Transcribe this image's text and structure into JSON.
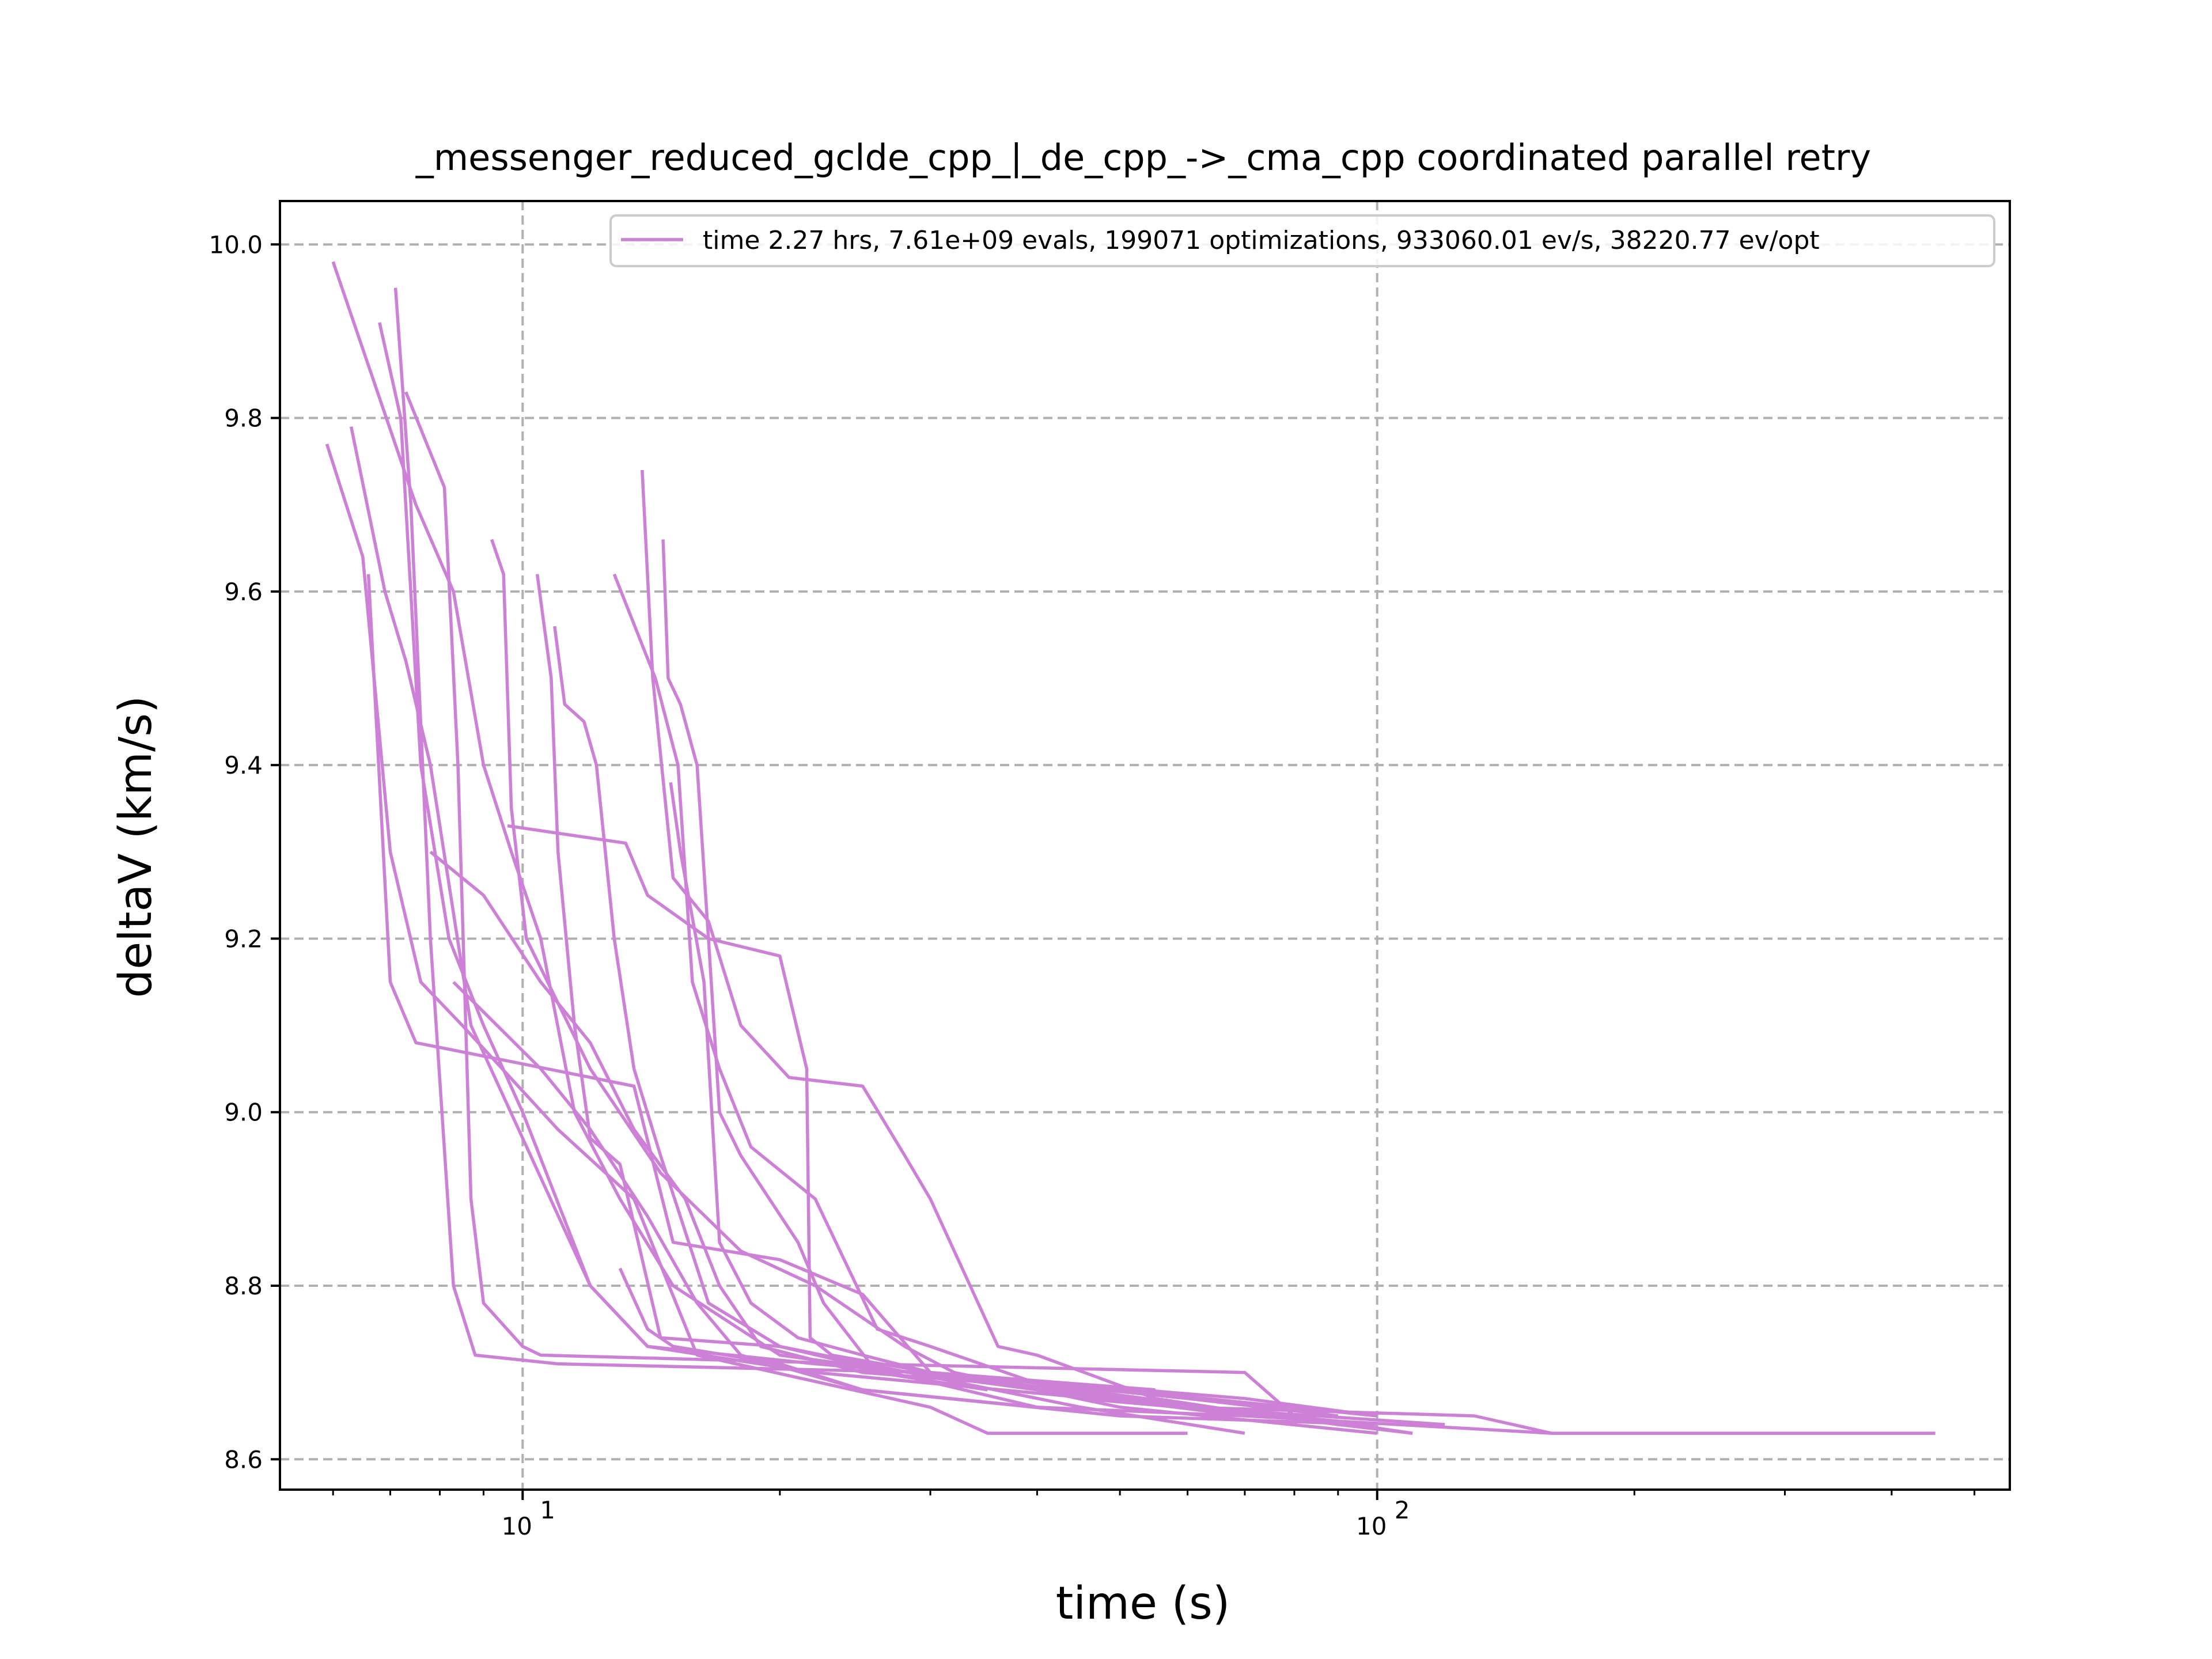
{
  "chart_data": {
    "type": "line",
    "title": "_messenger_reduced_gclde_cpp_|_de_cpp_->_cma_cpp coordinated parallel retry",
    "xlabel": "time (s)",
    "ylabel": "deltaV (km/s)",
    "xscale": "log",
    "xlim": [
      5.2,
      550
    ],
    "ylim": [
      8.565,
      10.05
    ],
    "grid": true,
    "legend_position": "top-right",
    "x_ticks": [
      {
        "value": 10,
        "base": "10",
        "exp": "1"
      },
      {
        "value": 100,
        "base": "10",
        "exp": "2"
      }
    ],
    "y_ticks": [
      {
        "value": 8.6,
        "label": "8.6"
      },
      {
        "value": 8.8,
        "label": "8.8"
      },
      {
        "value": 9.0,
        "label": "9.0"
      },
      {
        "value": 9.2,
        "label": "9.2"
      },
      {
        "value": 9.4,
        "label": "9.4"
      },
      {
        "value": 9.6,
        "label": "9.6"
      },
      {
        "value": 9.8,
        "label": "9.8"
      },
      {
        "value": 10.0,
        "label": "10.0"
      }
    ],
    "color": "#cc80d6",
    "series": [
      {
        "name": "time 2.27 hrs, 7.61e+09 evals, 199071 optimizations, 933060.01 ev/s, 38220.77 ev/opt",
        "points": [
          [
            6.0,
            9.98
          ],
          [
            7.5,
            9.7
          ],
          [
            8.3,
            9.6
          ],
          [
            9.0,
            9.4
          ],
          [
            9.7,
            9.3
          ],
          [
            10.5,
            9.2
          ],
          [
            11.5,
            9.0
          ],
          [
            13.0,
            8.9
          ],
          [
            15.0,
            8.8
          ],
          [
            20.0,
            8.72
          ],
          [
            40.0,
            8.68
          ],
          [
            70.0,
            8.65
          ],
          [
            160.0,
            8.63
          ],
          [
            450.0,
            8.63
          ]
        ]
      },
      {
        "name": "",
        "points": [
          [
            6.8,
            9.91
          ],
          [
            7.2,
            9.8
          ],
          [
            7.6,
            9.4
          ],
          [
            8.2,
            9.2
          ],
          [
            9.0,
            9.1
          ],
          [
            10.0,
            9.0
          ],
          [
            12.0,
            8.8
          ],
          [
            14.0,
            8.73
          ],
          [
            22.0,
            8.71
          ],
          [
            50.0,
            8.68
          ],
          [
            100.0,
            8.65
          ]
        ]
      },
      {
        "name": "",
        "points": [
          [
            7.1,
            9.95
          ],
          [
            7.4,
            9.7
          ],
          [
            7.8,
            9.2
          ],
          [
            8.3,
            8.8
          ],
          [
            8.8,
            8.72
          ],
          [
            11.0,
            8.71
          ],
          [
            30.0,
            8.7
          ],
          [
            60.0,
            8.66
          ],
          [
            120.0,
            8.64
          ]
        ]
      },
      {
        "name": "",
        "points": [
          [
            7.3,
            9.83
          ],
          [
            8.1,
            9.72
          ],
          [
            8.4,
            9.4
          ],
          [
            8.7,
            8.9
          ],
          [
            9.0,
            8.78
          ],
          [
            10.0,
            8.73
          ],
          [
            10.5,
            8.72
          ],
          [
            25.0,
            8.71
          ],
          [
            70.0,
            8.7
          ],
          [
            80.0,
            8.65
          ],
          [
            110.0,
            8.63
          ]
        ]
      },
      {
        "name": "",
        "points": [
          [
            5.9,
            9.77
          ],
          [
            6.5,
            9.64
          ],
          [
            7.0,
            9.3
          ],
          [
            7.6,
            9.15
          ],
          [
            8.5,
            9.1
          ],
          [
            11.0,
            8.98
          ],
          [
            13.5,
            8.9
          ],
          [
            16.0,
            8.72
          ],
          [
            30.0,
            8.66
          ],
          [
            35.0,
            8.63
          ],
          [
            60.0,
            8.63
          ]
        ]
      },
      {
        "name": "",
        "points": [
          [
            6.3,
            9.79
          ],
          [
            6.9,
            9.6
          ],
          [
            7.3,
            9.52
          ],
          [
            7.8,
            9.4
          ],
          [
            8.7,
            9.1
          ],
          [
            10.0,
            8.97
          ],
          [
            12.0,
            8.8
          ],
          [
            14.0,
            8.73
          ],
          [
            22.0,
            8.7
          ],
          [
            60.0,
            8.66
          ],
          [
            130.0,
            8.65
          ],
          [
            160.0,
            8.63
          ]
        ]
      },
      {
        "name": "",
        "points": [
          [
            6.6,
            9.62
          ],
          [
            7.0,
            9.15
          ],
          [
            7.5,
            9.08
          ],
          [
            9.5,
            9.06
          ],
          [
            13.5,
            9.03
          ],
          [
            15.0,
            8.85
          ],
          [
            20.0,
            8.83
          ],
          [
            25.0,
            8.79
          ],
          [
            30.0,
            8.7
          ],
          [
            55.0,
            8.68
          ]
        ]
      },
      {
        "name": "",
        "points": [
          [
            9.2,
            9.66
          ],
          [
            9.5,
            9.62
          ],
          [
            9.7,
            9.35
          ],
          [
            10.1,
            9.2
          ],
          [
            12.0,
            9.05
          ],
          [
            14.5,
            8.93
          ],
          [
            18.0,
            8.84
          ],
          [
            22.0,
            8.8
          ],
          [
            28.0,
            8.73
          ],
          [
            32.0,
            8.7
          ],
          [
            50.0,
            8.66
          ],
          [
            100.0,
            8.63
          ]
        ]
      },
      {
        "name": "",
        "points": [
          [
            10.4,
            9.62
          ],
          [
            10.8,
            9.5
          ],
          [
            11.0,
            9.3
          ],
          [
            11.5,
            9.1
          ],
          [
            12.0,
            8.97
          ],
          [
            13.0,
            8.94
          ],
          [
            14.5,
            8.74
          ],
          [
            20.0,
            8.73
          ],
          [
            40.0,
            8.66
          ]
        ]
      },
      {
        "name": "",
        "points": [
          [
            10.9,
            9.56
          ],
          [
            11.2,
            9.47
          ],
          [
            11.8,
            9.45
          ],
          [
            12.2,
            9.4
          ],
          [
            12.8,
            9.2
          ],
          [
            13.5,
            9.05
          ],
          [
            14.5,
            8.95
          ],
          [
            16.5,
            8.78
          ],
          [
            20.0,
            8.73
          ],
          [
            45.0,
            8.66
          ],
          [
            70.0,
            8.63
          ]
        ]
      },
      {
        "name": "",
        "points": [
          [
            9.6,
            9.33
          ],
          [
            13.2,
            9.31
          ],
          [
            14.0,
            9.25
          ],
          [
            16.5,
            9.2
          ],
          [
            20.0,
            9.18
          ],
          [
            21.5,
            9.05
          ],
          [
            21.7,
            8.74
          ],
          [
            23.0,
            8.72
          ],
          [
            30.0,
            8.7
          ],
          [
            60.0,
            8.67
          ],
          [
            90.0,
            8.65
          ]
        ]
      },
      {
        "name": "",
        "points": [
          [
            12.8,
            9.62
          ],
          [
            14.3,
            9.5
          ],
          [
            15.2,
            9.4
          ],
          [
            15.8,
            9.15
          ],
          [
            17.0,
            9.05
          ],
          [
            18.5,
            8.96
          ],
          [
            22.0,
            8.9
          ],
          [
            26.0,
            8.75
          ],
          [
            30.0,
            8.73
          ],
          [
            45.0,
            8.67
          ],
          [
            100.0,
            8.64
          ]
        ]
      },
      {
        "name": "",
        "points": [
          [
            13.8,
            9.74
          ],
          [
            14.2,
            9.5
          ],
          [
            15.0,
            9.27
          ],
          [
            16.5,
            9.22
          ],
          [
            18.0,
            9.1
          ],
          [
            20.5,
            9.04
          ],
          [
            25.0,
            9.03
          ],
          [
            28.0,
            8.95
          ],
          [
            30.0,
            8.9
          ],
          [
            36.0,
            8.73
          ],
          [
            40.0,
            8.72
          ],
          [
            55.0,
            8.67
          ],
          [
            75.0,
            8.65
          ]
        ]
      },
      {
        "name": "",
        "points": [
          [
            14.6,
            9.66
          ],
          [
            14.8,
            9.5
          ],
          [
            15.3,
            9.47
          ],
          [
            16.0,
            9.4
          ],
          [
            16.5,
            9.2
          ],
          [
            17.0,
            9.0
          ],
          [
            18.0,
            8.95
          ],
          [
            21.0,
            8.85
          ],
          [
            22.5,
            8.78
          ],
          [
            26.0,
            8.7
          ],
          [
            35.0,
            8.68
          ]
        ]
      },
      {
        "name": "",
        "points": [
          [
            14.9,
            9.38
          ],
          [
            15.3,
            9.3
          ],
          [
            16.3,
            9.15
          ],
          [
            17.0,
            8.85
          ],
          [
            18.5,
            8.78
          ],
          [
            21.0,
            8.74
          ],
          [
            25.0,
            8.72
          ],
          [
            30.0,
            8.7
          ],
          [
            70.0,
            8.67
          ],
          [
            100.0,
            8.65
          ]
        ]
      },
      {
        "name": "",
        "points": [
          [
            13.0,
            8.82
          ],
          [
            14.0,
            8.75
          ],
          [
            15.0,
            8.73
          ],
          [
            20.0,
            8.71
          ],
          [
            25.0,
            8.68
          ],
          [
            40.0,
            8.66
          ],
          [
            70.0,
            8.65
          ]
        ]
      },
      {
        "name": "",
        "points": [
          [
            7.8,
            9.3
          ],
          [
            9.0,
            9.25
          ],
          [
            10.5,
            9.15
          ],
          [
            12.0,
            9.08
          ],
          [
            13.5,
            8.98
          ],
          [
            15.5,
            8.9
          ],
          [
            17.0,
            8.8
          ],
          [
            19.0,
            8.73
          ],
          [
            25.0,
            8.7
          ],
          [
            45.0,
            8.68
          ],
          [
            90.0,
            8.64
          ],
          [
            110.0,
            8.63
          ]
        ]
      },
      {
        "name": "",
        "points": [
          [
            8.3,
            9.15
          ],
          [
            10.5,
            9.05
          ],
          [
            12.0,
            8.98
          ],
          [
            14.0,
            8.88
          ],
          [
            16.0,
            8.78
          ],
          [
            18.0,
            8.72
          ],
          [
            25.0,
            8.68
          ],
          [
            50.0,
            8.65
          ],
          [
            100.0,
            8.64
          ]
        ]
      }
    ]
  }
}
